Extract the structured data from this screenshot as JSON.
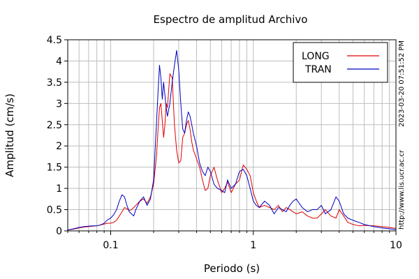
{
  "chart_data": {
    "type": "line",
    "title": "Espectro de amplitud Archivo",
    "xlabel": "Periodo (s)",
    "ylabel": "Amplitud (cm/s)",
    "x_scale": "log",
    "xlim": [
      0.05,
      10
    ],
    "ylim": [
      0,
      4.5
    ],
    "x_ticks": [
      {
        "value": 0.1,
        "label": "0.1"
      },
      {
        "value": 1,
        "label": "1"
      },
      {
        "value": 10,
        "label": "10"
      }
    ],
    "y_ticks": [
      "0",
      "0.5",
      "1",
      "1.5",
      "2",
      "2.5",
      "3",
      "3.5",
      "4",
      "4.5"
    ],
    "grid": true,
    "legend_position": "top-right",
    "series": [
      {
        "name": "LONG",
        "color": "#e00000",
        "x": [
          0.05,
          0.055,
          0.06,
          0.065,
          0.07,
          0.075,
          0.08,
          0.085,
          0.09,
          0.095,
          0.1,
          0.105,
          0.11,
          0.115,
          0.12,
          0.125,
          0.13,
          0.135,
          0.14,
          0.145,
          0.15,
          0.16,
          0.17,
          0.18,
          0.19,
          0.2,
          0.21,
          0.215,
          0.22,
          0.225,
          0.23,
          0.235,
          0.24,
          0.245,
          0.25,
          0.26,
          0.27,
          0.28,
          0.29,
          0.3,
          0.31,
          0.32,
          0.33,
          0.34,
          0.35,
          0.36,
          0.37,
          0.38,
          0.4,
          0.42,
          0.44,
          0.46,
          0.48,
          0.5,
          0.53,
          0.56,
          0.6,
          0.63,
          0.66,
          0.7,
          0.75,
          0.8,
          0.85,
          0.9,
          0.95,
          1.0,
          1.05,
          1.1,
          1.2,
          1.3,
          1.4,
          1.5,
          1.6,
          1.7,
          1.8,
          1.9,
          2.0,
          2.2,
          2.4,
          2.6,
          2.8,
          3.0,
          3.2,
          3.5,
          3.8,
          4.0,
          4.3,
          4.6,
          5.0,
          5.5,
          6.0,
          7.0,
          8.0,
          9.0,
          10.0
        ],
        "y": [
          0.02,
          0.04,
          0.07,
          0.09,
          0.1,
          0.11,
          0.12,
          0.14,
          0.16,
          0.18,
          0.18,
          0.2,
          0.25,
          0.35,
          0.45,
          0.55,
          0.52,
          0.48,
          0.5,
          0.55,
          0.6,
          0.7,
          0.75,
          0.65,
          0.8,
          1.1,
          1.8,
          2.4,
          2.9,
          3.0,
          2.6,
          2.2,
          2.5,
          3.0,
          2.9,
          3.7,
          3.6,
          2.5,
          1.9,
          1.6,
          1.65,
          2.2,
          2.3,
          2.5,
          2.6,
          2.4,
          2.1,
          1.9,
          1.7,
          1.5,
          1.2,
          0.95,
          1.0,
          1.3,
          1.5,
          1.2,
          0.9,
          1.0,
          1.15,
          0.9,
          1.1,
          1.2,
          1.55,
          1.45,
          1.3,
          0.9,
          0.7,
          0.55,
          0.6,
          0.55,
          0.5,
          0.6,
          0.45,
          0.55,
          0.5,
          0.45,
          0.4,
          0.45,
          0.35,
          0.3,
          0.3,
          0.4,
          0.5,
          0.35,
          0.3,
          0.5,
          0.35,
          0.2,
          0.15,
          0.12,
          0.13,
          0.12,
          0.1,
          0.08,
          0.06
        ]
      },
      {
        "name": "TRAN",
        "color": "#0000c0",
        "x": [
          0.05,
          0.055,
          0.06,
          0.065,
          0.07,
          0.075,
          0.08,
          0.085,
          0.09,
          0.095,
          0.1,
          0.105,
          0.11,
          0.115,
          0.12,
          0.125,
          0.13,
          0.135,
          0.14,
          0.145,
          0.15,
          0.16,
          0.17,
          0.18,
          0.19,
          0.2,
          0.21,
          0.215,
          0.22,
          0.225,
          0.23,
          0.235,
          0.24,
          0.245,
          0.25,
          0.26,
          0.27,
          0.28,
          0.29,
          0.3,
          0.31,
          0.32,
          0.33,
          0.34,
          0.35,
          0.36,
          0.37,
          0.38,
          0.4,
          0.42,
          0.44,
          0.46,
          0.48,
          0.5,
          0.53,
          0.56,
          0.6,
          0.63,
          0.66,
          0.7,
          0.75,
          0.8,
          0.85,
          0.9,
          0.95,
          1.0,
          1.05,
          1.1,
          1.2,
          1.3,
          1.4,
          1.5,
          1.6,
          1.7,
          1.8,
          1.9,
          2.0,
          2.2,
          2.4,
          2.6,
          2.8,
          3.0,
          3.2,
          3.5,
          3.8,
          4.0,
          4.3,
          4.6,
          5.0,
          5.5,
          6.0,
          7.0,
          8.0,
          9.0,
          10.0
        ],
        "y": [
          0.02,
          0.05,
          0.08,
          0.1,
          0.11,
          0.12,
          0.12,
          0.14,
          0.18,
          0.26,
          0.3,
          0.38,
          0.5,
          0.7,
          0.85,
          0.8,
          0.6,
          0.45,
          0.4,
          0.35,
          0.5,
          0.7,
          0.8,
          0.6,
          0.75,
          1.2,
          2.6,
          3.3,
          3.9,
          3.6,
          3.1,
          3.5,
          3.2,
          2.9,
          2.7,
          3.0,
          3.5,
          3.9,
          4.25,
          3.8,
          3.0,
          2.4,
          2.3,
          2.6,
          2.8,
          2.7,
          2.5,
          2.3,
          2.0,
          1.6,
          1.4,
          1.3,
          1.5,
          1.4,
          1.1,
          1.0,
          0.95,
          0.9,
          1.2,
          1.0,
          1.1,
          1.4,
          1.45,
          1.3,
          1.0,
          0.7,
          0.6,
          0.55,
          0.7,
          0.6,
          0.4,
          0.55,
          0.5,
          0.45,
          0.6,
          0.7,
          0.75,
          0.55,
          0.45,
          0.5,
          0.5,
          0.6,
          0.4,
          0.5,
          0.8,
          0.7,
          0.4,
          0.3,
          0.25,
          0.2,
          0.15,
          0.1,
          0.07,
          0.05,
          0.03
        ]
      }
    ],
    "side_labels": {
      "timestamp": "2023-03-20 07:51:52 PM",
      "website": "http://www.lis.ucr.ac.cr"
    }
  }
}
